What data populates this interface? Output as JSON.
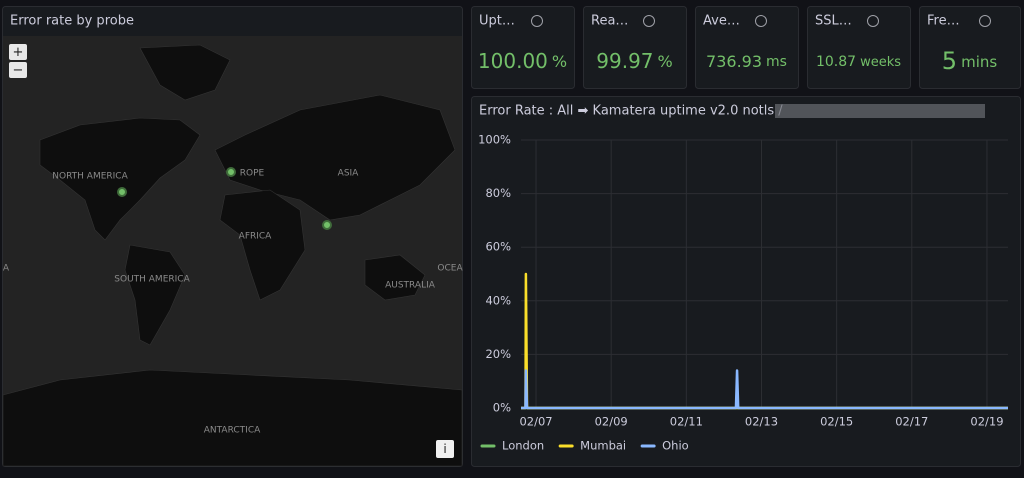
{
  "map_panel": {
    "title": "Error rate by probe",
    "zoom_in": "+",
    "zoom_out": "−",
    "info": "i",
    "labels": [
      "NORTH AMERICA",
      "ROPE",
      "ASIA",
      "AFRICA",
      "SOUTH AMERICA",
      "AUSTRALIA",
      "ANTARCTICA",
      "OCEA",
      "A"
    ]
  },
  "stats": [
    {
      "title": "Upt…",
      "value": "100.00",
      "unit": "%"
    },
    {
      "title": "Rea…",
      "value": "99.97",
      "unit": "%"
    },
    {
      "title": "Ave…",
      "value": "736.93",
      "unit": "ms"
    },
    {
      "title": "SSL…",
      "value": "10.87",
      "unit": "weeks"
    },
    {
      "title": "Fre…",
      "value": "5",
      "unit": "mins"
    }
  ],
  "chart_data": {
    "type": "line",
    "title": "Error Rate : All ➡ Kamatera uptime v2.0 notls /",
    "x": [
      6.6,
      6.72,
      6.73,
      6.76,
      12.32,
      12.35,
      12.38,
      19.56
    ],
    "series": [
      {
        "name": "London",
        "color": "#73bf69",
        "values": [
          0,
          0,
          0,
          0,
          0,
          0,
          0,
          0
        ]
      },
      {
        "name": "Mumbai",
        "color": "#fade2a",
        "values": [
          0,
          0,
          50,
          0,
          0,
          0,
          0,
          0
        ]
      },
      {
        "name": "Ohio",
        "color": "#8ab8ff",
        "values": [
          0,
          0,
          14,
          0,
          0,
          14,
          0,
          0
        ]
      }
    ],
    "xlim": [
      6.6,
      19.56
    ],
    "xticks": [
      {
        "value": 7,
        "label": "02/07"
      },
      {
        "value": 9,
        "label": "02/09"
      },
      {
        "value": 11,
        "label": "02/11"
      },
      {
        "value": 13,
        "label": "02/13"
      },
      {
        "value": 15,
        "label": "02/15"
      },
      {
        "value": 17,
        "label": "02/17"
      },
      {
        "value": 19,
        "label": "02/19"
      }
    ],
    "ylim": [
      0,
      100
    ],
    "yticks": [
      {
        "value": 0,
        "label": "0%"
      },
      {
        "value": 20,
        "label": "20%"
      },
      {
        "value": 40,
        "label": "40%"
      },
      {
        "value": 60,
        "label": "60%"
      },
      {
        "value": 80,
        "label": "80%"
      },
      {
        "value": 100,
        "label": "100%"
      }
    ],
    "grid": true,
    "legend": "bottom"
  }
}
